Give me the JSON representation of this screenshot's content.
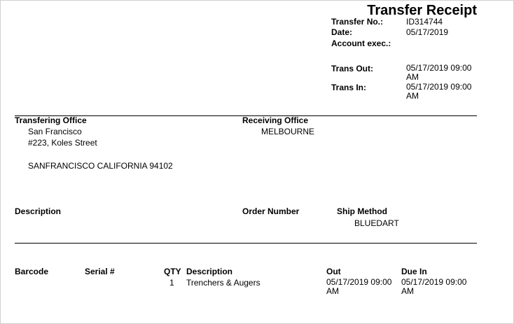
{
  "title": "Transfer Receipt",
  "header": {
    "transfer_no_label": "Transfer No.:",
    "transfer_no": "ID314744",
    "date_label": "Date:",
    "date": "05/17/2019",
    "account_exec_label": "Account exec.:",
    "account_exec": "",
    "trans_out_label": "Trans Out:",
    "trans_out": "05/17/2019 09:00 AM",
    "trans_in_label": "Trans In:",
    "trans_in": "05/17/2019 09:00 AM"
  },
  "transferring_office": {
    "label": "Transfering Office",
    "line1": "San Francisco",
    "line2": "#223, Koles Street",
    "line3": "SANFRANCISCO CALIFORNIA 94102"
  },
  "receiving_office": {
    "label": "Receiving Office",
    "line1": "MELBOURNE"
  },
  "order": {
    "description_label": "Description",
    "order_number_label": "Order Number",
    "ship_method_label": "Ship Method",
    "ship_method": "BLUEDART"
  },
  "items": {
    "headers": {
      "barcode": "Barcode",
      "serial": "Serial #",
      "qty": "QTY",
      "description": "Description",
      "out": "Out",
      "due_in": "Due In"
    },
    "rows": [
      {
        "barcode": "",
        "serial": "",
        "qty": "1",
        "description": "Trenchers & Augers",
        "out": "05/17/2019 09:00 AM",
        "due_in": "05/17/2019 09:00 AM"
      }
    ]
  }
}
